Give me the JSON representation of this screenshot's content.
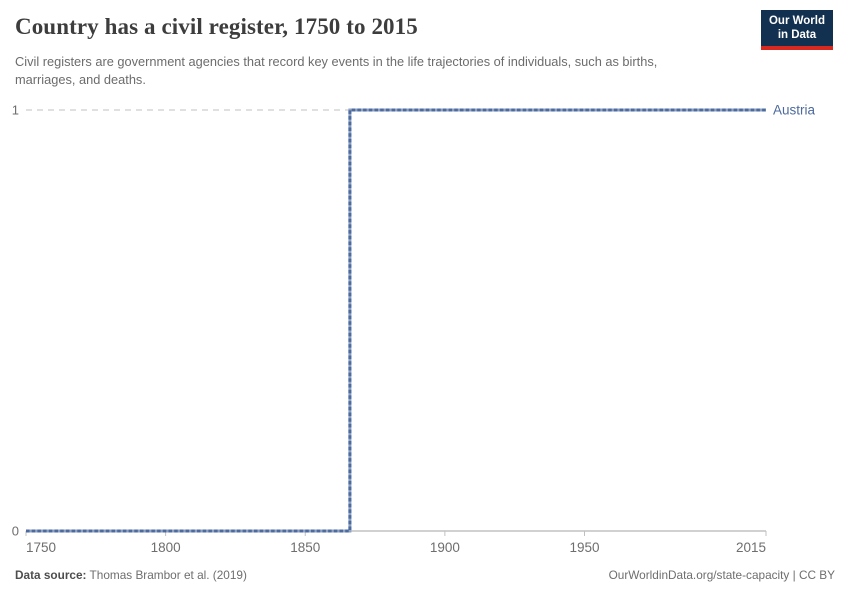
{
  "header": {
    "title": "Country has a civil register, 1750 to 2015",
    "subtitle": "Civil registers are government agencies that record key events in the life trajectories of individuals, such as births, marriages, and deaths.",
    "logo": {
      "line1": "Our World",
      "line2": "in Data",
      "bg_color": "#12304f",
      "accent_color": "#d7291f"
    }
  },
  "chart_data": {
    "type": "line",
    "title": "Country has a civil register, 1750 to 2015",
    "xlabel": "",
    "ylabel": "",
    "xlim": [
      1750,
      2015
    ],
    "ylim": [
      0,
      1
    ],
    "x_ticks": [
      1750,
      1800,
      1850,
      1900,
      1950,
      2015
    ],
    "y_ticks": [
      0,
      1
    ],
    "grid": "horizontal-dashed",
    "legend_position": "right-of-line-end",
    "series": [
      {
        "name": "Austria",
        "color": "#4c6a9c",
        "color_light": "#8da2c6",
        "step_year": 1866,
        "points": [
          {
            "x": 1750,
            "y": 0
          },
          {
            "x": 1866,
            "y": 0
          },
          {
            "x": 1866,
            "y": 1
          },
          {
            "x": 2015,
            "y": 1
          }
        ]
      }
    ],
    "colors": {
      "gridline": "#dcdcdc",
      "axis_line": "#a3a3a3",
      "tick_mark": "#c0c0c0",
      "tick_label": "#6e6e6e"
    }
  },
  "footer": {
    "source_label": "Data source:",
    "source_value": "Thomas Brambor et al. (2019)",
    "license": "OurWorldinData.org/state-capacity | CC BY"
  }
}
